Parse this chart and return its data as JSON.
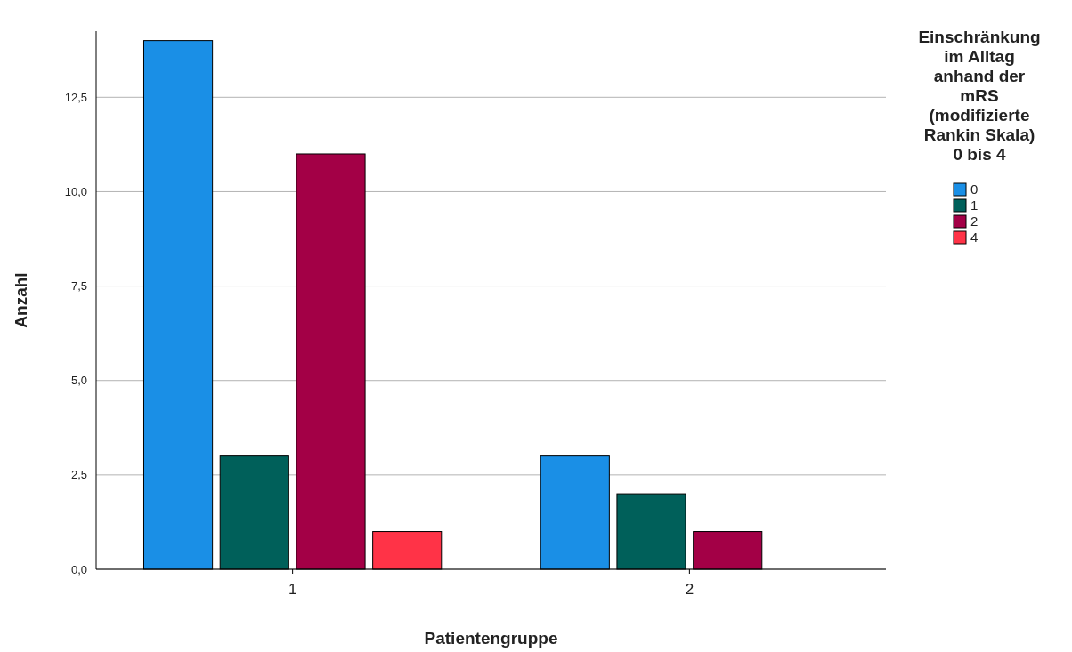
{
  "chart_data": {
    "type": "bar",
    "xlabel": "Patientengruppe",
    "ylabel": "Anzahl",
    "legend_title": "Einschränkung im Alltag anhand der mRS (modifizierte Rankin Skala) 0 bis 4",
    "categories": [
      "1",
      "2"
    ],
    "series": [
      {
        "name": "0",
        "color": "#1a8fe6",
        "values": [
          14,
          3
        ]
      },
      {
        "name": "1",
        "color": "#00605a",
        "values": [
          3,
          2
        ]
      },
      {
        "name": "2",
        "color": "#a30046",
        "values": [
          11,
          1
        ]
      },
      {
        "name": "4",
        "color": "#ff3347",
        "values": [
          1,
          null
        ]
      }
    ],
    "ylim": [
      0,
      14.25
    ],
    "yticks": [
      {
        "value": 0,
        "label": "0,0"
      },
      {
        "value": 2.5,
        "label": "2,5"
      },
      {
        "value": 5,
        "label": "5,0"
      },
      {
        "value": 7.5,
        "label": "7,5"
      },
      {
        "value": 10,
        "label": "10,0"
      },
      {
        "value": 12.5,
        "label": "12,5"
      }
    ],
    "grid": "y",
    "legend": "top right"
  }
}
